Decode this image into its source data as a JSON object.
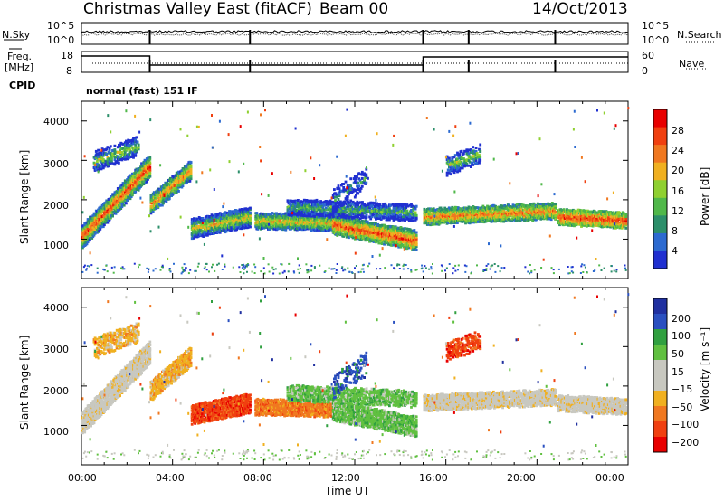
{
  "header": {
    "title_left": "Christmas Valley East (fitACF)",
    "title_center": "Beam 00",
    "title_right": "14/Oct/2013"
  },
  "left_labels": {
    "nsky": "N.Sky",
    "freq": "Freq.",
    "freq_unit": "[MHz]",
    "cpid": "CPID"
  },
  "right_labels": {
    "nsearch": "N.Search",
    "nave": "Nave"
  },
  "panel_top_ticks": {
    "noise_left": [
      "10^5",
      "10^0"
    ],
    "noise_right": [
      "10^5",
      "10^0"
    ],
    "freq_left": [
      "18",
      "8"
    ],
    "freq_right": [
      "60",
      "0"
    ]
  },
  "cpid_text": "normal (fast) 151 IF",
  "colorbar_colors": {
    "power": [
      "#2030d0",
      "#2c6ad0",
      "#2c8f6a",
      "#50b84a",
      "#8fd030",
      "#f0b020",
      "#f07820",
      "#f04010",
      "#e80000"
    ],
    "velocity": [
      "#e80000",
      "#f04010",
      "#f07820",
      "#f0b020",
      "#c8c8c0",
      "#c8c8c0",
      "#60c040",
      "#30a040",
      "#2a50c0",
      "#2030a0"
    ]
  },
  "chart_data": [
    {
      "type": "heatmap",
      "title": "",
      "ylabel": "Slant Range [km]",
      "ylim": [
        0,
        4500
      ],
      "yticks": [
        "4000",
        "3000",
        "2000",
        "1000"
      ],
      "colorbar": {
        "label": "Power [dB]",
        "ticks": [
          "28",
          "24",
          "20",
          "16",
          "12",
          "8",
          "4"
        ],
        "range": [
          0,
          32
        ]
      }
    },
    {
      "type": "heatmap",
      "title": "",
      "xlabel": "Time UT",
      "ylabel": "Slant Range [km]",
      "ylim": [
        0,
        4500
      ],
      "yticks": [
        "4000",
        "3000",
        "2000",
        "1000"
      ],
      "xticks": [
        "00:00",
        "04:00",
        "08:00",
        "12:00",
        "16:00",
        "20:00",
        "00:00"
      ],
      "colorbar": {
        "label": "Velocity [m s⁻¹]",
        "ticks": [
          "200",
          "100",
          "50",
          "15",
          "−15",
          "−50",
          "−100",
          "−200"
        ]
      }
    }
  ]
}
